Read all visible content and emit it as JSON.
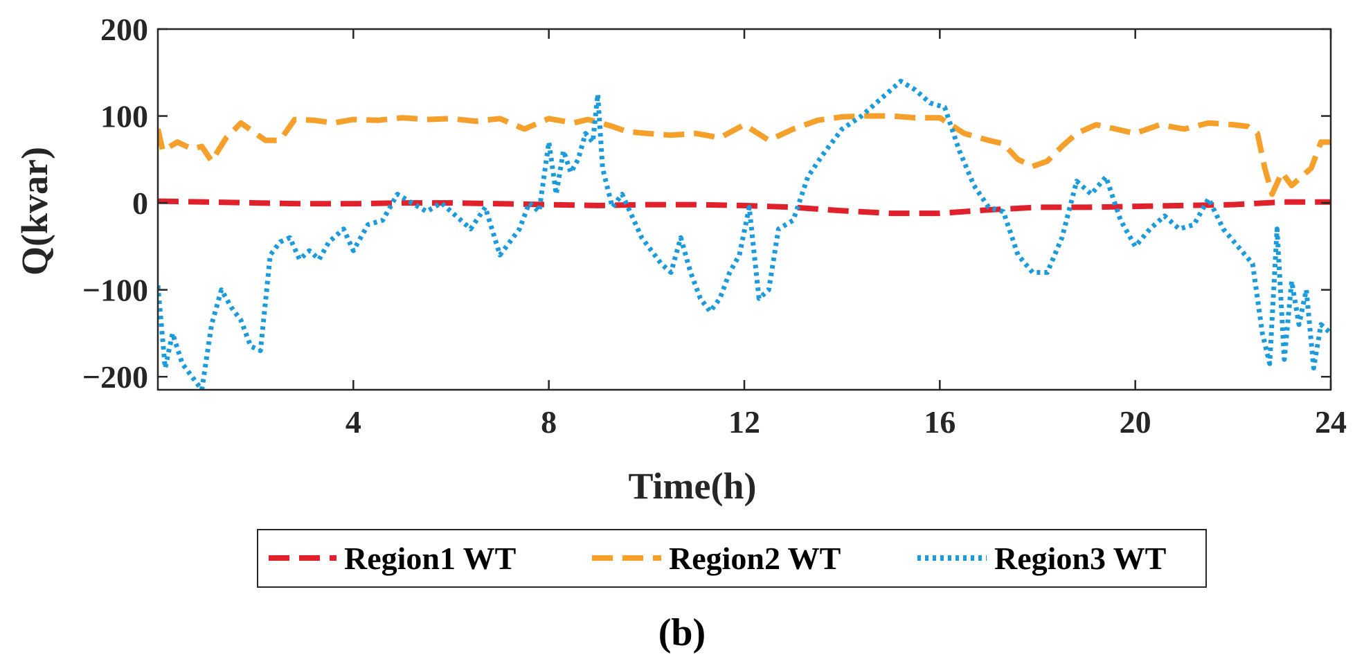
{
  "chart_data": {
    "type": "line",
    "title": "",
    "xlabel": "Time(h)",
    "ylabel": "Q(kvar)",
    "xlim": [
      0,
      24
    ],
    "ylim": [
      -215,
      200
    ],
    "xticks": [
      4,
      8,
      12,
      16,
      20,
      24
    ],
    "yticks": [
      200,
      100,
      0,
      -100,
      -200
    ],
    "xtick_labels": [
      "4",
      "8",
      "12",
      "16",
      "20",
      "24"
    ],
    "ytick_labels": [
      "200",
      "100",
      "0",
      "−100",
      "−200"
    ],
    "grid": false,
    "legend_position": "below",
    "panel_label": "(b)",
    "series": [
      {
        "name": "Region1 WT",
        "color": "#E0202A",
        "style": "dashed",
        "x": [
          0,
          1,
          2,
          3,
          4,
          5,
          6,
          7,
          8,
          9,
          10,
          11,
          12,
          13,
          14,
          15,
          16,
          17,
          18,
          19,
          20,
          21,
          22,
          23,
          24
        ],
        "y": [
          2,
          1,
          0,
          -1,
          -1,
          0,
          0,
          -1,
          -2,
          -3,
          -2,
          -2,
          -3,
          -5,
          -9,
          -12,
          -12,
          -8,
          -5,
          -5,
          -4,
          -3,
          -2,
          1,
          1
        ]
      },
      {
        "name": "Region2 WT",
        "color": "#F5A02A",
        "style": "dashed",
        "x": [
          0,
          0.1,
          0.4,
          0.7,
          0.9,
          1.1,
          1.4,
          1.7,
          2.0,
          2.2,
          2.5,
          2.8,
          3.2,
          3.6,
          4.0,
          4.5,
          5.0,
          5.5,
          6.0,
          6.5,
          7.0,
          7.5,
          8.0,
          8.5,
          8.8,
          9.0,
          9.3,
          9.6,
          10.0,
          10.5,
          11.0,
          11.5,
          12.0,
          12.5,
          13.0,
          13.5,
          14.0,
          14.5,
          15.0,
          15.5,
          16.0,
          16.5,
          17.0,
          17.3,
          17.6,
          17.9,
          18.2,
          18.5,
          18.8,
          19.2,
          19.6,
          20.0,
          20.5,
          21.0,
          21.5,
          22.0,
          22.3,
          22.5,
          22.65,
          22.8,
          23.0,
          23.2,
          23.4,
          23.6,
          23.8,
          24.0
        ],
        "y": [
          85,
          60,
          70,
          62,
          65,
          48,
          75,
          92,
          80,
          72,
          72,
          96,
          95,
          92,
          96,
          95,
          98,
          96,
          97,
          94,
          97,
          85,
          97,
          92,
          96,
          93,
          88,
          82,
          80,
          78,
          80,
          75,
          90,
          72,
          85,
          95,
          99,
          100,
          100,
          98,
          98,
          80,
          72,
          68,
          50,
          42,
          48,
          65,
          80,
          90,
          85,
          80,
          90,
          85,
          92,
          90,
          88,
          80,
          40,
          10,
          35,
          20,
          30,
          40,
          70,
          70
        ]
      },
      {
        "name": "Region3 WT",
        "color": "#1B9BDB",
        "style": "dotted",
        "x": [
          0,
          0.15,
          0.3,
          0.5,
          0.7,
          0.9,
          1.1,
          1.3,
          1.5,
          1.7,
          1.9,
          2.1,
          2.3,
          2.5,
          2.7,
          2.9,
          3.1,
          3.3,
          3.5,
          3.8,
          4.0,
          4.3,
          4.6,
          4.9,
          5.2,
          5.5,
          5.8,
          6.1,
          6.4,
          6.7,
          7.0,
          7.2,
          7.4,
          7.6,
          7.8,
          8.0,
          8.15,
          8.3,
          8.45,
          8.6,
          8.75,
          8.9,
          9.0,
          9.1,
          9.3,
          9.5,
          9.7,
          9.9,
          10.1,
          10.3,
          10.5,
          10.7,
          10.9,
          11.1,
          11.3,
          11.5,
          11.7,
          11.9,
          12.1,
          12.3,
          12.5,
          12.7,
          13.0,
          13.3,
          13.6,
          14.0,
          14.4,
          14.8,
          15.2,
          15.5,
          15.8,
          16.1,
          16.4,
          16.7,
          17.0,
          17.3,
          17.6,
          17.9,
          18.2,
          18.5,
          18.8,
          19.1,
          19.4,
          19.7,
          20.0,
          20.3,
          20.6,
          20.9,
          21.2,
          21.5,
          21.8,
          22.1,
          22.4,
          22.6,
          22.75,
          22.9,
          23.05,
          23.2,
          23.35,
          23.5,
          23.65,
          23.8,
          24.0
        ],
        "y": [
          -95,
          -190,
          -150,
          -185,
          -200,
          -215,
          -140,
          -100,
          -120,
          -135,
          -165,
          -170,
          -60,
          -45,
          -40,
          -65,
          -55,
          -65,
          -45,
          -30,
          -55,
          -25,
          -20,
          10,
          0,
          -10,
          0,
          -15,
          -30,
          -5,
          -60,
          -45,
          -30,
          0,
          -10,
          70,
          10,
          60,
          35,
          50,
          80,
          70,
          125,
          40,
          -5,
          10,
          -15,
          -40,
          -55,
          -70,
          -80,
          -40,
          -80,
          -110,
          -125,
          -110,
          -80,
          -60,
          -5,
          -110,
          -100,
          -30,
          -20,
          30,
          55,
          85,
          100,
          120,
          140,
          130,
          115,
          110,
          60,
          20,
          -5,
          -10,
          -60,
          -80,
          -80,
          -40,
          25,
          10,
          30,
          -20,
          -50,
          -30,
          -15,
          -30,
          -25,
          5,
          -30,
          -50,
          -70,
          -150,
          -185,
          -30,
          -180,
          -90,
          -140,
          -100,
          -190,
          -140,
          -150
        ]
      }
    ]
  }
}
